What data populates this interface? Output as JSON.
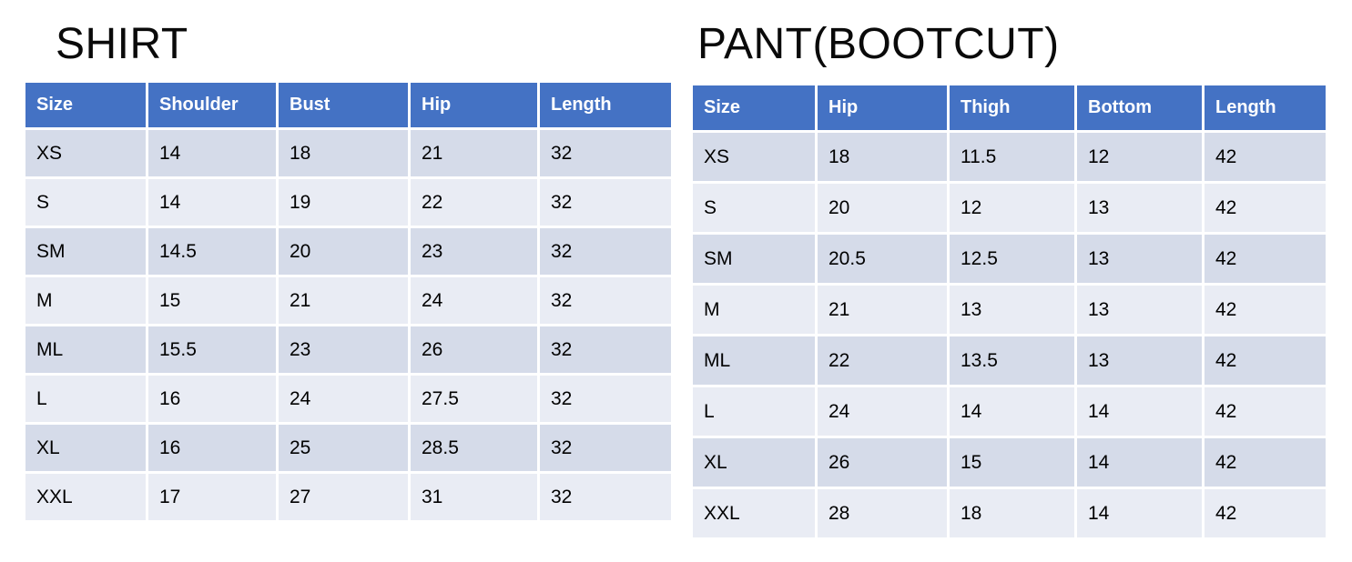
{
  "page": {
    "background": "#ffffff"
  },
  "colors": {
    "header_bg": "#4472C4",
    "header_text": "#ffffff",
    "row_odd": "#D5DBE9",
    "row_even": "#E9ECF4",
    "body_text": "#000000",
    "title_text": "#0a0a0a"
  },
  "tables": [
    {
      "id": "shirt",
      "title": "SHIRT",
      "columns": [
        "Size",
        "Shoulder",
        "Bust",
        "Hip",
        "Length"
      ],
      "rows": [
        [
          "XS",
          "14",
          "18",
          "21",
          "32"
        ],
        [
          "S",
          "14",
          "19",
          "22",
          "32"
        ],
        [
          "SM",
          "14.5",
          "20",
          "23",
          "32"
        ],
        [
          "M",
          "15",
          "21",
          "24",
          "32"
        ],
        [
          "ML",
          "15.5",
          "23",
          "26",
          "32"
        ],
        [
          "L",
          "16",
          "24",
          "27.5",
          "32"
        ],
        [
          "XL",
          "16",
          "25",
          "28.5",
          "32"
        ],
        [
          "XXL",
          "17",
          "27",
          "31",
          "32"
        ]
      ]
    },
    {
      "id": "pant",
      "title": "PANT(BOOTCUT)",
      "columns": [
        "Size",
        "Hip",
        "Thigh",
        "Bottom",
        "Length"
      ],
      "rows": [
        [
          "XS",
          "18",
          "11.5",
          "12",
          "42"
        ],
        [
          "S",
          "20",
          "12",
          "13",
          "42"
        ],
        [
          "SM",
          "20.5",
          "12.5",
          "13",
          "42"
        ],
        [
          "M",
          "21",
          "13",
          "13",
          "42"
        ],
        [
          "ML",
          "22",
          "13.5",
          "13",
          "42"
        ],
        [
          "L",
          "24",
          "14",
          "14",
          "42"
        ],
        [
          "XL",
          "26",
          "15",
          "14",
          "42"
        ],
        [
          "XXL",
          "28",
          "18",
          "14",
          "42"
        ]
      ]
    }
  ]
}
